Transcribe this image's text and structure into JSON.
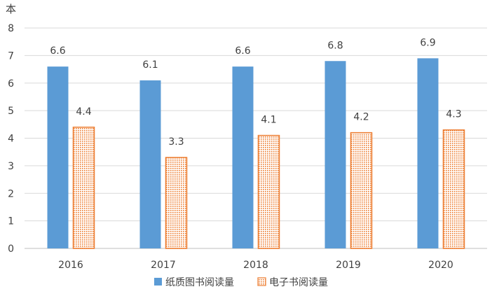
{
  "chart_data": {
    "type": "bar",
    "ylabel": "本",
    "ylim": [
      0,
      8
    ],
    "yticks": [
      "0",
      "1",
      "2",
      "3",
      "4",
      "5",
      "6",
      "7",
      "8"
    ],
    "categories": [
      "2016",
      "2017",
      "2018",
      "2019",
      "2020"
    ],
    "grid": true,
    "legend_position": "bottom",
    "series": [
      {
        "name": "纸质图书阅读量",
        "values": [
          6.6,
          6.1,
          6.6,
          6.8,
          6.9
        ],
        "labels": [
          "6.6",
          "6.1",
          "6.6",
          "6.8",
          "6.9"
        ],
        "color": "#5b9bd5",
        "pattern": "solid"
      },
      {
        "name": "电子书阅读量",
        "values": [
          4.4,
          3.3,
          4.1,
          4.2,
          4.3
        ],
        "labels": [
          "4.4",
          "3.3",
          "4.1",
          "4.2",
          "4.3"
        ],
        "color": "#ed7d31",
        "pattern": "dotted"
      }
    ]
  }
}
